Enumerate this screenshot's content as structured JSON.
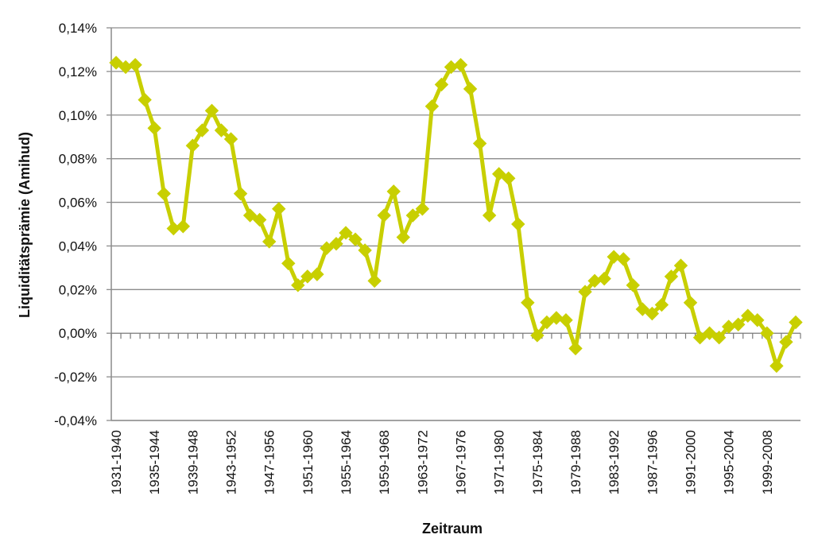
{
  "chart_data": {
    "type": "line",
    "title": "",
    "xlabel": "Zeitraum",
    "ylabel": "Liquiditätsprämie (Amihud)",
    "ylim": [
      -0.04,
      0.14
    ],
    "yticks": [
      -0.04,
      -0.02,
      0.0,
      0.02,
      0.04,
      0.06,
      0.08,
      0.1,
      0.12,
      0.14
    ],
    "ytick_labels": [
      "-0,04%",
      "-0,02%",
      "0,00%",
      "0,02%",
      "0,04%",
      "0,06%",
      "0,08%",
      "0,10%",
      "0,12%",
      "0,14%"
    ],
    "xtick_labels": [
      "1931-1940",
      "1935-1944",
      "1939-1948",
      "1943-1952",
      "1947-1956",
      "1951-1960",
      "1955-1964",
      "1959-1968",
      "1963-1972",
      "1967-1976",
      "1971-1980",
      "1975-1984",
      "1979-1988",
      "1983-1992",
      "1987-1996",
      "1991-2000",
      "1995-2004",
      "1999-2008"
    ],
    "grid": true,
    "zero_line": "dashed",
    "color": "#c8cf00",
    "series": [
      {
        "values": [
          0.124,
          0.122,
          0.123,
          0.107,
          0.094,
          0.064,
          0.048,
          0.049,
          0.086,
          0.093,
          0.102,
          0.093,
          0.089,
          0.064,
          0.054,
          0.052,
          0.042,
          0.057,
          0.032,
          0.022,
          0.026,
          0.027,
          0.039,
          0.041,
          0.046,
          0.043,
          0.038,
          0.024,
          0.054,
          0.065,
          0.044,
          0.054,
          0.057,
          0.104,
          0.114,
          0.122,
          0.123,
          0.112,
          0.087,
          0.054,
          0.073,
          0.071,
          0.05,
          0.014,
          -0.001,
          0.005,
          0.007,
          0.006,
          -0.007,
          0.019,
          0.024,
          0.025,
          0.035,
          0.034,
          0.022,
          0.011,
          0.009,
          0.013,
          0.026,
          0.031,
          0.014,
          -0.002,
          0.0,
          -0.002,
          0.003,
          0.004,
          0.008,
          0.006,
          0.0,
          -0.015,
          -0.004,
          0.005
        ]
      }
    ]
  }
}
